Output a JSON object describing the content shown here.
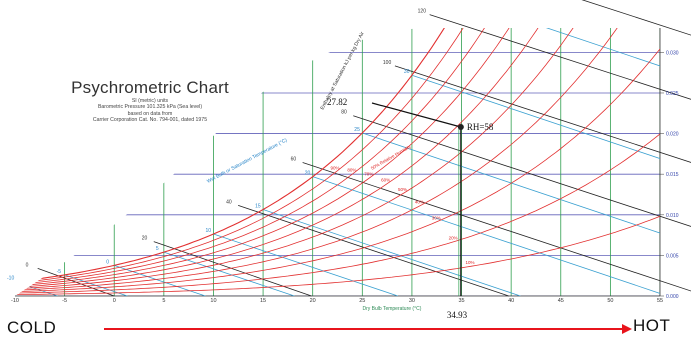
{
  "chart_data": {
    "type": "line",
    "title": "Psychrometric Chart",
    "subtitle_lines": [
      "SI (metric) units",
      "Barometric Pressure 101.325 kPa (Sea level)",
      "based on data from",
      "Carrier Corporation Cat. No. 794-001, dated 1975"
    ],
    "xlabel": "Dry Bulb Temperature (°C)",
    "xlim": [
      -10,
      55
    ],
    "x_ticks": [
      -10,
      -5,
      0,
      5,
      10,
      15,
      20,
      25,
      30,
      35,
      40,
      45,
      50,
      55
    ],
    "y_ticks": [
      "0.000",
      "0.005",
      "0.010",
      "0.015",
      "0.020",
      "0.025",
      "0.030"
    ],
    "ylim": [
      0,
      0.033
    ],
    "rh_levels": [
      10,
      20,
      30,
      40,
      50,
      60,
      70,
      80,
      90,
      100
    ],
    "rh_labels": [
      "10%",
      "20%",
      "30%",
      "40%",
      "50%",
      "60%",
      "70%",
      "80%",
      "90%"
    ],
    "rh_axis_label": "50% Relative Humidity",
    "wet_bulb_label": "Wet Bulb or Saturation Temperature (°C)",
    "enthalpy_label": "Enthalpy at Saturation kJ per kg Dry Air",
    "enthalpy_ticks": [
      "0",
      "20",
      "40",
      "60",
      "80",
      "100",
      "120",
      "140"
    ],
    "point": {
      "dry_bulb": 34.93,
      "enthalpy": 27.82,
      "rh": 58,
      "x_label": "34.93",
      "y_label": "27.82",
      "rh_label": "RH=58"
    }
  },
  "labels": {
    "cold": "COLD",
    "hot": "HOT"
  },
  "colors": {
    "rh_curve": "#e23030",
    "dry_bulb": "#2e9e4e",
    "wet_bulb": "#3aa0d0",
    "enthalpy": "#222222",
    "humidity_grid": "#3a3aa8",
    "arrow": "#e8141c"
  }
}
